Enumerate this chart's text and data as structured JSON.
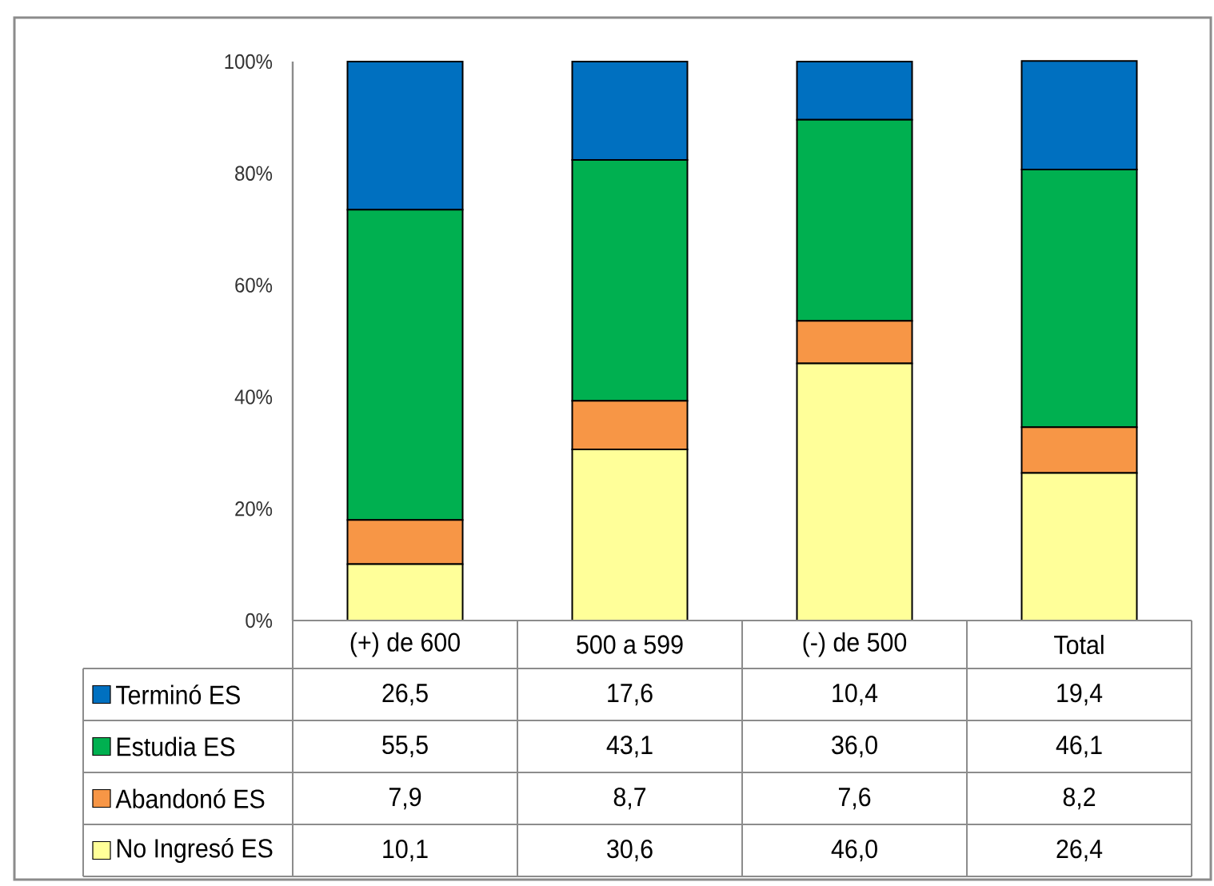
{
  "chart_data": {
    "type": "bar",
    "stacked": true,
    "legend": "bottom",
    "categories": [
      "(+) de 600",
      "500 a 599",
      "(-) de 500",
      "Total"
    ],
    "ylim": [
      0,
      100
    ],
    "yticks": [
      {
        "value": 0,
        "label": "0%"
      },
      {
        "value": 20,
        "label": "20%"
      },
      {
        "value": 40,
        "label": "40%"
      },
      {
        "value": 60,
        "label": "60%"
      },
      {
        "value": 80,
        "label": "80%"
      },
      {
        "value": 100,
        "label": "100%"
      }
    ],
    "series": [
      {
        "name": "No Ingresó ES",
        "color": "#ffff99",
        "values": [
          10.1,
          30.6,
          46.0,
          26.4
        ],
        "value_labels": [
          "10,1",
          "30,6",
          "46,0",
          "26,4"
        ]
      },
      {
        "name": "Abandonó ES",
        "color": "#f79646",
        "values": [
          7.9,
          8.7,
          7.6,
          8.2
        ],
        "value_labels": [
          "7,9",
          "8,7",
          "7,6",
          "8,2"
        ]
      },
      {
        "name": "Estudia ES",
        "color": "#00b050",
        "values": [
          55.5,
          43.1,
          36.0,
          46.1
        ],
        "value_labels": [
          "55,5",
          "43,1",
          "36,0",
          "46,1"
        ]
      },
      {
        "name": "Terminó ES",
        "color": "#0070c0",
        "values": [
          26.5,
          17.6,
          10.4,
          19.4
        ],
        "value_labels": [
          "26,5",
          "17,6",
          "10,4",
          "19,4"
        ]
      }
    ]
  }
}
